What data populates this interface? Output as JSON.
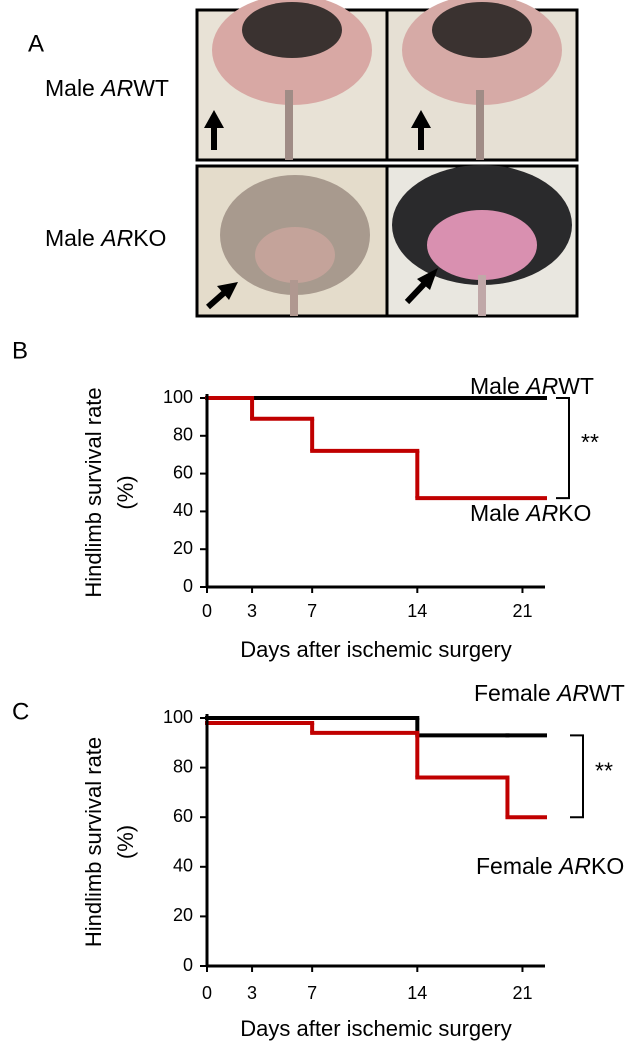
{
  "panel_labels": [
    "A",
    "B",
    "C"
  ],
  "photo_panel": {
    "rows": [
      {
        "label": [
          "Male ",
          "AR",
          "WT"
        ]
      },
      {
        "label": [
          "Male ",
          "AR",
          "KO"
        ]
      }
    ]
  },
  "chart_data": [
    {
      "type": "step",
      "x_label": "Days after ischemic surgery",
      "y_label": "Hindlimb survival rate",
      "y_unit": "(%)",
      "x": [
        0,
        3,
        7,
        14
      ],
      "xlim": [
        0,
        22.5
      ],
      "xticks": [
        0,
        3,
        7,
        14,
        21
      ],
      "ylim": [
        0,
        100
      ],
      "yticks": [
        0,
        20,
        40,
        60,
        80,
        100
      ],
      "series": [
        {
          "name": [
            "Male ",
            "AR",
            "WT"
          ],
          "color": "#000000",
          "values": [
            100,
            100,
            100,
            100
          ]
        },
        {
          "name": [
            "Male ",
            "AR",
            "KO"
          ],
          "color": "#c00000",
          "values": [
            100,
            89,
            72,
            47
          ]
        }
      ],
      "significance": "**"
    },
    {
      "type": "step",
      "x_label": "Days after ischemic surgery",
      "y_label": "Hindlimb survival rate",
      "y_unit": "(%)",
      "x": [
        0,
        7,
        14,
        20
      ],
      "xlim": [
        0,
        22.5
      ],
      "xticks": [
        0,
        3,
        7,
        14,
        21
      ],
      "ylim": [
        0,
        100
      ],
      "yticks": [
        0,
        20,
        40,
        60,
        80,
        100
      ],
      "series": [
        {
          "name": [
            "Female ",
            "AR",
            "WT"
          ],
          "color": "#000000",
          "values": [
            100,
            100,
            93,
            93
          ]
        },
        {
          "name": [
            "Female ",
            "AR",
            "KO"
          ],
          "color": "#c00000",
          "values": [
            98,
            94,
            76,
            60
          ]
        }
      ],
      "significance": "**"
    }
  ]
}
